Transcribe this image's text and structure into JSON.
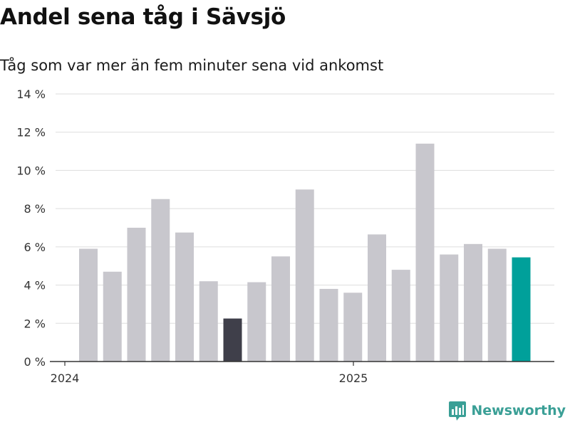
{
  "title": "Andel sena tåg i Sävsjö",
  "subtitle": "Tåg som var mer än fem minuter sena vid ankomst",
  "brand": {
    "name": "Newsworthy",
    "color": "#3a9f96",
    "icon": "newsworthy-logo-icon"
  },
  "colors": {
    "default_bar": "#c8c7cd",
    "highlight_low": "#3f3f4a",
    "highlight_latest": "#00a09a",
    "grid": "#dddddd",
    "axis": "#333333"
  },
  "chart_data": {
    "type": "bar",
    "title": "Andel sena tåg i Sävsjö",
    "subtitle": "Tåg som var mer än fem minuter sena vid ankomst",
    "x_tick_labels": [
      "2024",
      "2025"
    ],
    "y_tick_labels": [
      "0 %",
      "2 %",
      "4 %",
      "6 %",
      "8 %",
      "10 %",
      "12 %",
      "14 %"
    ],
    "ylim": [
      0,
      14
    ],
    "grid": true,
    "legend": "none",
    "unit": "%",
    "bars": [
      {
        "date": "2024-01",
        "value": 5.9,
        "highlight": "none"
      },
      {
        "date": "2024-02",
        "value": 4.7,
        "highlight": "none"
      },
      {
        "date": "2024-03",
        "value": 7.0,
        "highlight": "none"
      },
      {
        "date": "2024-04",
        "value": 8.5,
        "highlight": "none"
      },
      {
        "date": "2024-05",
        "value": 6.75,
        "highlight": "none"
      },
      {
        "date": "2024-06",
        "value": 4.2,
        "highlight": "none"
      },
      {
        "date": "2024-07",
        "value": 2.25,
        "highlight": "low"
      },
      {
        "date": "2024-08",
        "value": 4.15,
        "highlight": "none"
      },
      {
        "date": "2024-09",
        "value": 5.5,
        "highlight": "none"
      },
      {
        "date": "2024-10",
        "value": 9.0,
        "highlight": "none"
      },
      {
        "date": "2024-11",
        "value": 3.8,
        "highlight": "none"
      },
      {
        "date": "2024-12",
        "value": 3.6,
        "highlight": "none"
      },
      {
        "date": "2025-01",
        "value": 6.65,
        "highlight": "none"
      },
      {
        "date": "2025-02",
        "value": 4.8,
        "highlight": "none"
      },
      {
        "date": "2025-03",
        "value": 11.4,
        "highlight": "none"
      },
      {
        "date": "2025-04",
        "value": 5.6,
        "highlight": "none"
      },
      {
        "date": "2025-05",
        "value": 6.15,
        "highlight": "none"
      },
      {
        "date": "2025-06",
        "value": 5.9,
        "highlight": "none"
      },
      {
        "date": "2025-07",
        "value": 5.45,
        "highlight": "latest"
      }
    ]
  }
}
